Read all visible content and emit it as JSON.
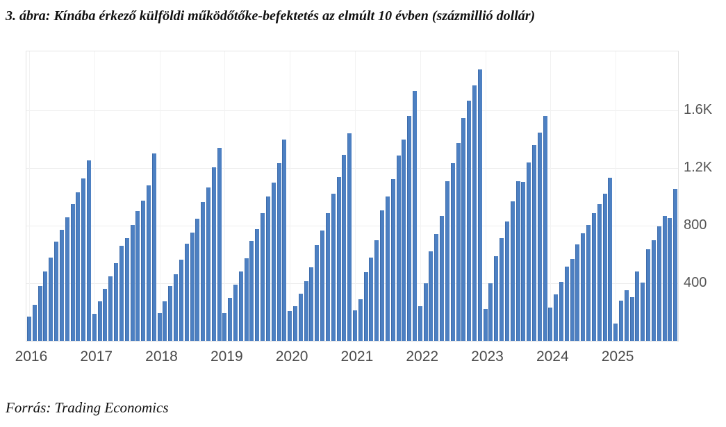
{
  "caption": "3. ábra: Kínába érkező külföldi működőtőke-befektetés az elmúlt 10 évben (százmillió dollár)",
  "source": "Forrás: Trading Economics",
  "colors": {
    "bar": "#4d80c2",
    "bar_edge": "#3e6cab",
    "grid": "#ececec",
    "plot_border": "#e4e4e4",
    "axis_text": "#555555"
  },
  "chart_data": {
    "type": "bar",
    "title": "",
    "xlabel": "",
    "ylabel": "",
    "unit_note": "százmillió dollár (hundred million dollars), cumulative year-to-date per month",
    "grid": true,
    "legend": "none",
    "ylim": [
      0,
      2010
    ],
    "yticks": [
      {
        "label": "1.6K",
        "value": 1600
      },
      {
        "label": "1.2K",
        "value": 1200
      },
      {
        "label": "800",
        "value": 800
      },
      {
        "label": "400",
        "value": 400
      }
    ],
    "categories": [
      "2016",
      "2017",
      "2018",
      "2019",
      "2020",
      "2021",
      "2022",
      "2023",
      "2024",
      "2025"
    ],
    "series": [
      {
        "year": "2016",
        "values": [
          170,
          250,
          380,
          480,
          580,
          690,
          770,
          860,
          950,
          1030,
          1130,
          1255
        ]
      },
      {
        "year": "2017",
        "values": [
          190,
          275,
          360,
          450,
          540,
          660,
          715,
          805,
          900,
          975,
          1080,
          1300
        ]
      },
      {
        "year": "2018",
        "values": [
          195,
          275,
          380,
          465,
          565,
          675,
          750,
          850,
          965,
          1065,
          1205,
          1340
        ]
      },
      {
        "year": "2019",
        "values": [
          195,
          300,
          390,
          480,
          575,
          695,
          775,
          885,
          1005,
          1100,
          1235,
          1400
        ]
      },
      {
        "year": "2020",
        "values": [
          205,
          240,
          330,
          415,
          510,
          665,
          765,
          885,
          1020,
          1140,
          1290,
          1440
        ]
      },
      {
        "year": "2021",
        "values": [
          210,
          290,
          475,
          580,
          700,
          905,
          1005,
          1125,
          1285,
          1400,
          1560,
          1735
        ]
      },
      {
        "year": "2022",
        "values": [
          240,
          400,
          620,
          740,
          870,
          1110,
          1235,
          1375,
          1545,
          1670,
          1775,
          1885
        ]
      },
      {
        "year": "2023",
        "values": [
          220,
          400,
          590,
          715,
          830,
          970,
          1110,
          1105,
          1240,
          1360,
          1445,
          1560
        ]
      },
      {
        "year": "2024",
        "values": [
          230,
          325,
          410,
          515,
          570,
          670,
          745,
          805,
          885,
          950,
          1020,
          1135
        ]
      },
      {
        "year": "2025",
        "values": [
          120,
          280,
          350,
          305,
          480,
          405,
          635,
          700,
          795,
          870,
          855,
          1055
        ]
      }
    ]
  }
}
